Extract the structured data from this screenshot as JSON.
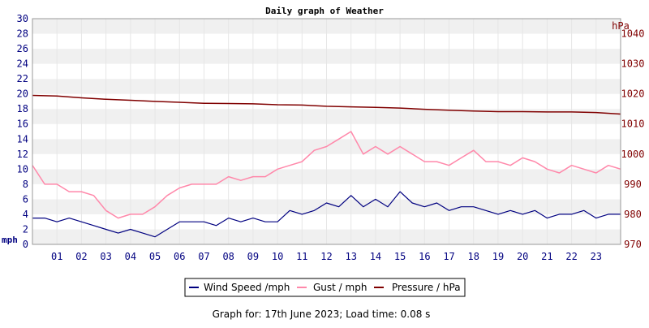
{
  "chart_data": {
    "type": "line",
    "title": "Daily graph of Weather",
    "x": {
      "unit": "hour of day",
      "range": [
        0,
        24
      ],
      "tick_labels": [
        "01",
        "02",
        "03",
        "04",
        "05",
        "06",
        "07",
        "08",
        "09",
        "10",
        "11",
        "12",
        "13",
        "14",
        "15",
        "16",
        "17",
        "18",
        "19",
        "20",
        "21",
        "22",
        "23"
      ]
    },
    "y_left": {
      "unit": "mph",
      "range": [
        0,
        30
      ],
      "tick_labels": [
        "0",
        "2",
        "4",
        "6",
        "8",
        "10",
        "12",
        "14",
        "16",
        "18",
        "20",
        "22",
        "24",
        "26",
        "28",
        "30"
      ]
    },
    "y_right": {
      "unit": "hPa",
      "range": [
        970,
        1045
      ],
      "tick_labels": [
        "970",
        "980",
        "990",
        "1000",
        "1010",
        "1020",
        "1030",
        "1040"
      ]
    },
    "grid": true,
    "series": [
      {
        "name": "Wind Speed /mph",
        "axis": "left",
        "color": "#000080",
        "x": [
          0.0,
          0.5,
          1.0,
          1.5,
          2.0,
          2.5,
          3.0,
          3.5,
          4.0,
          4.5,
          5.0,
          5.5,
          6.0,
          6.5,
          7.0,
          7.5,
          8.0,
          8.5,
          9.0,
          9.5,
          10.0,
          10.5,
          11.0,
          11.5,
          12.0,
          12.5,
          13.0,
          13.5,
          14.0,
          14.5,
          15.0,
          15.5,
          16.0,
          16.5,
          17.0,
          17.5,
          18.0,
          18.5,
          19.0,
          19.5,
          20.0,
          20.5,
          21.0,
          21.5,
          22.0,
          22.5,
          23.0,
          23.5,
          24.0
        ],
        "values": [
          3.5,
          3.5,
          3.0,
          3.5,
          3.0,
          2.5,
          2.0,
          1.5,
          2.0,
          1.5,
          1.0,
          2.0,
          3.0,
          3.0,
          3.0,
          2.5,
          3.5,
          3.0,
          3.5,
          3.0,
          3.0,
          4.5,
          4.0,
          4.5,
          5.5,
          5.0,
          6.5,
          5.0,
          6.0,
          5.0,
          7.0,
          5.5,
          5.0,
          5.5,
          4.5,
          5.0,
          5.0,
          4.5,
          4.0,
          4.5,
          4.0,
          4.5,
          3.5,
          4.0,
          4.0,
          4.5,
          3.5,
          4.0,
          4.0
        ]
      },
      {
        "name": "Gust / mph",
        "axis": "left",
        "color": "#ff88aa",
        "x": [
          0.0,
          0.5,
          1.0,
          1.5,
          2.0,
          2.5,
          3.0,
          3.5,
          4.0,
          4.5,
          5.0,
          5.5,
          6.0,
          6.5,
          7.0,
          7.5,
          8.0,
          8.5,
          9.0,
          9.5,
          10.0,
          10.5,
          11.0,
          11.5,
          12.0,
          12.5,
          13.0,
          13.5,
          14.0,
          14.5,
          15.0,
          15.5,
          16.0,
          16.5,
          17.0,
          17.5,
          18.0,
          18.5,
          19.0,
          19.5,
          20.0,
          20.5,
          21.0,
          21.5,
          22.0,
          22.5,
          23.0,
          23.5,
          24.0
        ],
        "values": [
          10.5,
          8.0,
          8.0,
          7.0,
          7.0,
          6.5,
          4.5,
          3.5,
          4.0,
          4.0,
          5.0,
          6.5,
          7.5,
          8.0,
          8.0,
          8.0,
          9.0,
          8.5,
          9.0,
          9.0,
          10.0,
          10.5,
          11.0,
          12.5,
          13.0,
          14.0,
          15.0,
          12.0,
          13.0,
          12.0,
          13.0,
          12.0,
          11.0,
          11.0,
          10.5,
          11.5,
          12.5,
          11.0,
          11.0,
          10.5,
          11.5,
          11.0,
          10.0,
          9.5,
          10.5,
          10.0,
          9.5,
          10.5,
          10.0
        ]
      },
      {
        "name": "Pressure / hPa",
        "axis": "right",
        "color": "#800000",
        "x": [
          0,
          1,
          2,
          3,
          4,
          5,
          6,
          7,
          8,
          9,
          10,
          11,
          12,
          13,
          14,
          15,
          16,
          17,
          18,
          19,
          20,
          21,
          22,
          23,
          24
        ],
        "values": [
          1019.5,
          1019.3,
          1018.7,
          1018.2,
          1017.9,
          1017.5,
          1017.2,
          1016.9,
          1016.8,
          1016.7,
          1016.4,
          1016.3,
          1015.9,
          1015.7,
          1015.5,
          1015.3,
          1014.9,
          1014.6,
          1014.3,
          1014.1,
          1014.1,
          1014.0,
          1014.0,
          1013.8,
          1013.3
        ]
      }
    ]
  },
  "footer": {
    "text": "Graph for: 17th June 2023; Load time: 0.08 s"
  }
}
